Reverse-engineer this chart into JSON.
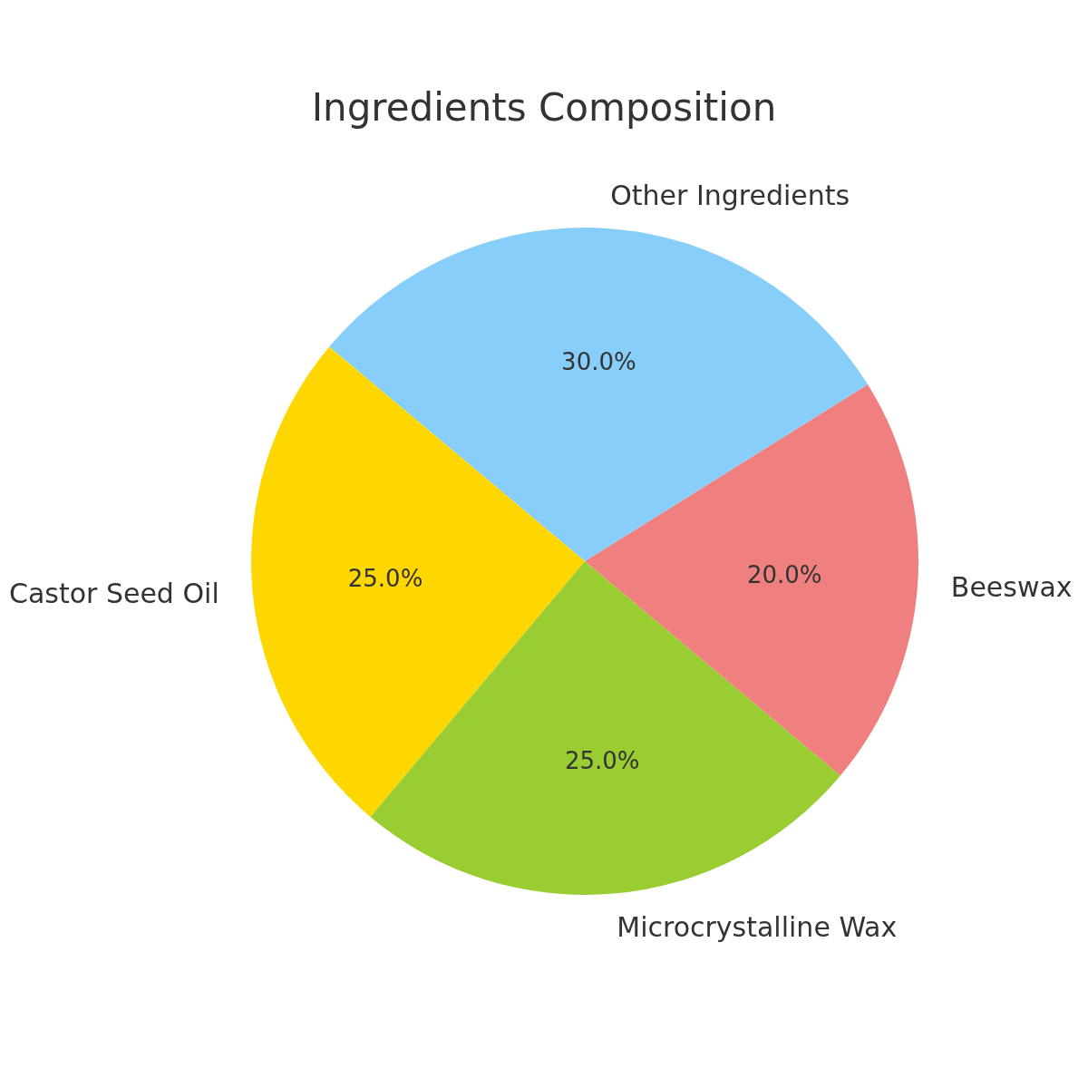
{
  "chart_data": {
    "type": "pie",
    "title": "Ingredients Composition",
    "categories": [
      "Beeswax",
      "Other Ingredients",
      "Castor Seed Oil",
      "Microcrystalline Wax"
    ],
    "values": [
      20,
      30,
      25,
      25
    ],
    "colors": [
      "#f08080",
      "#87cefa",
      "#ffd700",
      "#9acd32"
    ],
    "value_labels": [
      "20.0%",
      "30.0%",
      "25.0%",
      "25.0%"
    ]
  }
}
